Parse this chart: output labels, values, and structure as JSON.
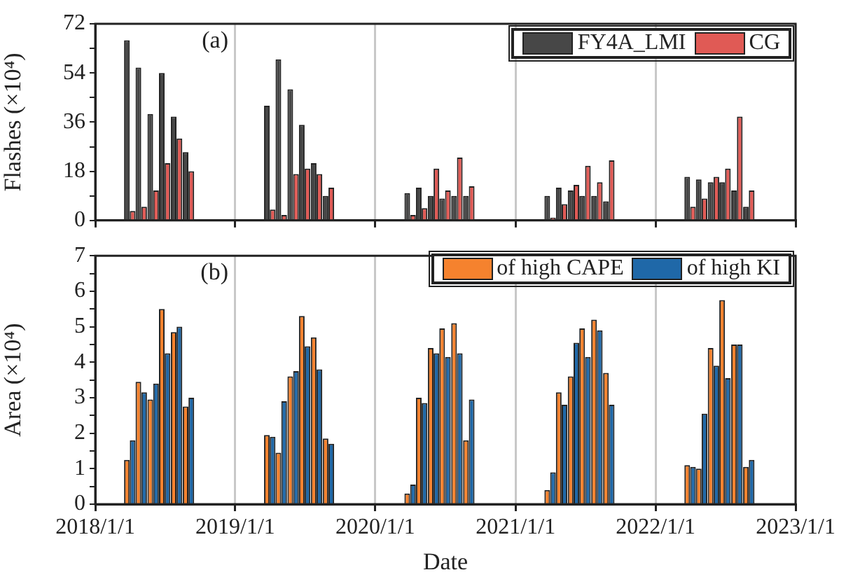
{
  "chart_data": [
    {
      "type": "bar",
      "ylabel": "Flashes (×10⁴)",
      "annotations": [
        "(a)"
      ],
      "x": [
        "2018-04",
        "2018-05",
        "2018-06",
        "2018-07",
        "2018-08",
        "2018-09",
        "2019-04",
        "2019-05",
        "2019-06",
        "2019-07",
        "2019-08",
        "2019-09",
        "2020-04",
        "2020-05",
        "2020-06",
        "2020-07",
        "2020-08",
        "2020-09",
        "2021-04",
        "2021-05",
        "2021-06",
        "2021-07",
        "2021-08",
        "2021-09",
        "2022-04",
        "2022-05",
        "2022-06",
        "2022-07",
        "2022-08",
        "2022-09"
      ],
      "series": [
        {
          "name": "FY4A_LMI",
          "color": "#474747",
          "values": [
            66,
            56,
            39,
            54,
            38,
            25,
            42,
            59,
            48,
            35,
            21,
            9,
            10,
            12,
            9,
            8,
            9,
            9,
            9,
            12,
            11,
            9,
            9,
            7,
            16,
            15,
            14,
            14,
            11,
            5
          ]
        },
        {
          "name": "CG",
          "color": "#e05a55",
          "values": [
            3.5,
            5,
            11,
            21,
            30,
            18,
            4,
            2,
            17,
            19,
            17,
            12,
            2,
            4.5,
            19,
            11,
            23,
            12.5,
            1,
            6,
            13,
            20,
            14,
            22,
            5,
            8,
            16,
            19,
            38,
            11
          ]
        }
      ],
      "xlim": [
        "2018-01-01",
        "2023-01-01"
      ],
      "xticks": [
        {
          "value": "2018-01-01",
          "label": null
        },
        {
          "value": "2019-01-01",
          "label": null
        },
        {
          "value": "2020-01-01",
          "label": null
        },
        {
          "value": "2021-01-01",
          "label": null
        },
        {
          "value": "2022-01-01",
          "label": null
        },
        {
          "value": "2023-01-01",
          "label": null
        }
      ],
      "ylim": [
        0,
        72
      ],
      "yticks": [
        0,
        {
          "value": 9,
          "label": null
        },
        18,
        {
          "value": 27,
          "label": null
        },
        36,
        {
          "value": 45,
          "label": null
        },
        54,
        {
          "value": 63,
          "label": null
        },
        72
      ],
      "tick_labels": "y",
      "grid": "x",
      "legend": "top right"
    },
    {
      "type": "bar",
      "xlabel": "Date",
      "ylabel": "Area (×10⁴)",
      "annotations": [
        "(b)"
      ],
      "x": [
        "2018-04",
        "2018-05",
        "2018-06",
        "2018-07",
        "2018-08",
        "2018-09",
        "2019-04",
        "2019-05",
        "2019-06",
        "2019-07",
        "2019-08",
        "2019-09",
        "2020-04",
        "2020-05",
        "2020-06",
        "2020-07",
        "2020-08",
        "2020-09",
        "2021-04",
        "2021-05",
        "2021-06",
        "2021-07",
        "2021-08",
        "2021-09",
        "2022-04",
        "2022-05",
        "2022-06",
        "2022-07",
        "2022-08",
        "2022-09"
      ],
      "series": [
        {
          "name": "of high CAPE",
          "color": "#f5822e",
          "values": [
            1.25,
            3.45,
            2.95,
            5.5,
            4.85,
            2.75,
            1.95,
            1.45,
            3.6,
            5.3,
            4.7,
            1.85,
            0.3,
            3.0,
            4.4,
            4.95,
            5.1,
            1.8,
            0.4,
            3.15,
            3.6,
            4.95,
            5.2,
            3.7,
            1.1,
            1.0,
            4.4,
            5.75,
            4.5,
            1.05
          ]
        },
        {
          "name": "of high KI",
          "color": "#1f68a8",
          "values": [
            1.8,
            3.15,
            3.4,
            4.25,
            5.0,
            3.0,
            1.9,
            2.9,
            3.75,
            4.45,
            3.8,
            1.7,
            0.55,
            2.85,
            4.25,
            4.15,
            4.25,
            2.95,
            0.9,
            2.8,
            4.55,
            4.15,
            4.9,
            2.8,
            1.05,
            2.55,
            3.9,
            3.55,
            4.5,
            1.25
          ]
        }
      ],
      "xlim": [
        "2018-01-01",
        "2023-01-01"
      ],
      "xticks": [
        {
          "value": "2018-01-01",
          "label": "2018/1/1"
        },
        {
          "value": "2019-01-01",
          "label": "2019/1/1"
        },
        {
          "value": "2020-01-01",
          "label": "2020/1/1"
        },
        {
          "value": "2021-01-01",
          "label": "2021/1/1"
        },
        {
          "value": "2022-01-01",
          "label": "2022/1/1"
        },
        {
          "value": "2023-01-01",
          "label": "2023/1/1"
        }
      ],
      "ylim": [
        0,
        7
      ],
      "yticks": [
        0,
        {
          "value": 0.5,
          "label": null
        },
        1,
        {
          "value": 1.5,
          "label": null
        },
        2,
        {
          "value": 2.5,
          "label": null
        },
        3,
        {
          "value": 3.5,
          "label": null
        },
        4,
        {
          "value": 4.5,
          "label": null
        },
        5,
        {
          "value": 5.5,
          "label": null
        },
        6,
        {
          "value": 6.5,
          "label": null
        },
        7
      ],
      "grid": "x",
      "legend": "top right"
    }
  ]
}
